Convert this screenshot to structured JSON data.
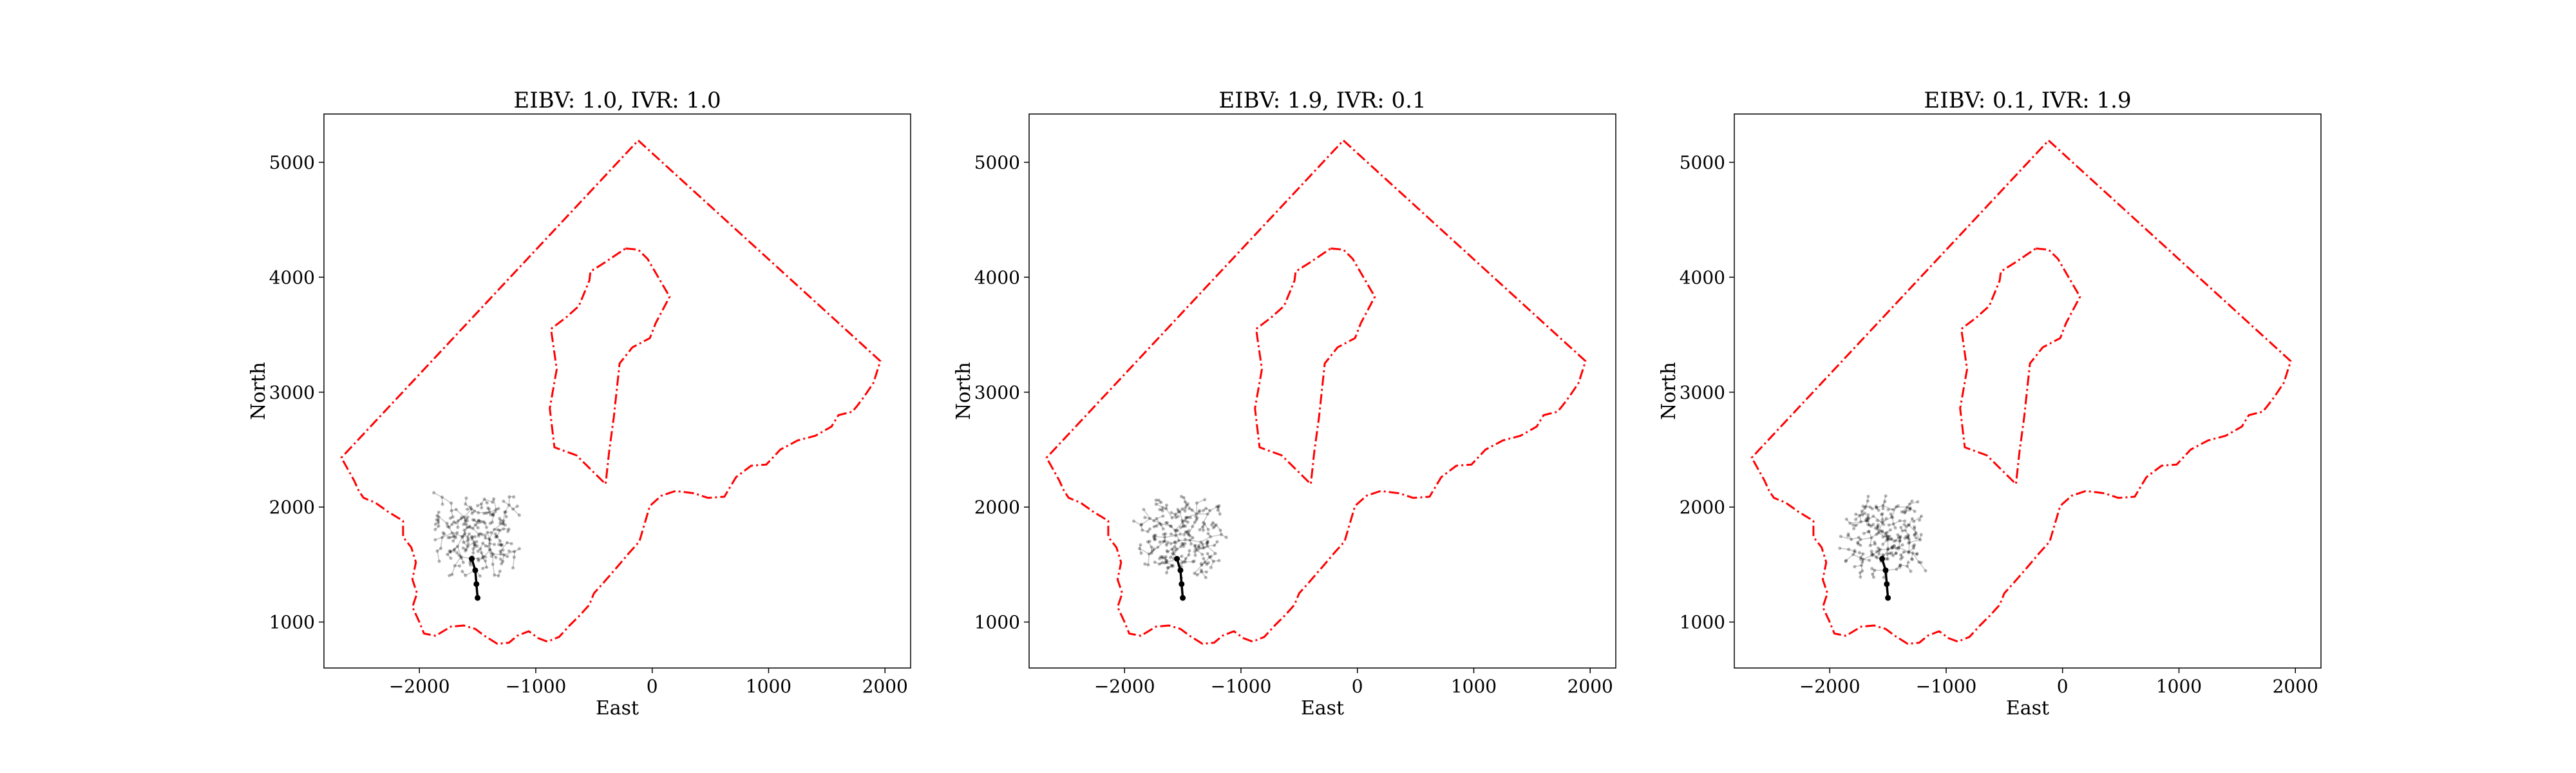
{
  "chart_data": [
    {
      "type": "scatter",
      "title": "EIBV: 1.0, IVR: 1.0",
      "xlabel": "East",
      "ylabel": "North",
      "xlim": [
        -2820,
        2220
      ],
      "ylim": [
        600,
        5420
      ],
      "xticks": [
        -2000,
        -1000,
        0,
        1000,
        2000
      ],
      "xtick_labels": [
        "−2000",
        "−1000",
        "0",
        "1000",
        "2000"
      ],
      "yticks": [
        1000,
        2000,
        3000,
        4000,
        5000
      ],
      "ytick_labels": [
        "1000",
        "2000",
        "3000",
        "4000",
        "5000"
      ],
      "tree_seed": 11,
      "grid": false
    },
    {
      "type": "scatter",
      "title": "EIBV: 1.9, IVR: 0.1",
      "xlabel": "East",
      "ylabel": "North",
      "xlim": [
        -2820,
        2220
      ],
      "ylim": [
        600,
        5420
      ],
      "xticks": [
        -2000,
        -1000,
        0,
        1000,
        2000
      ],
      "xtick_labels": [
        "−2000",
        "−1000",
        "0",
        "1000",
        "2000"
      ],
      "yticks": [
        1000,
        2000,
        3000,
        4000,
        5000
      ],
      "ytick_labels": [
        "1000",
        "2000",
        "3000",
        "4000",
        "5000"
      ],
      "tree_seed": 29,
      "grid": false
    },
    {
      "type": "scatter",
      "title": "EIBV: 0.1, IVR: 1.9",
      "xlabel": "East",
      "ylabel": "North",
      "xlim": [
        -2820,
        2220
      ],
      "ylim": [
        600,
        5420
      ],
      "xticks": [
        -2000,
        -1000,
        0,
        1000,
        2000
      ],
      "xtick_labels": [
        "−2000",
        "−1000",
        "0",
        "1000",
        "2000"
      ],
      "yticks": [
        1000,
        2000,
        3000,
        4000,
        5000
      ],
      "ytick_labels": [
        "1000",
        "2000",
        "3000",
        "4000",
        "5000"
      ],
      "tree_seed": 47,
      "grid": false
    }
  ],
  "shared": {
    "outer_boundary": [
      [
        -120,
        5190
      ],
      [
        1960,
        3270
      ],
      [
        1900,
        3080
      ],
      [
        1820,
        2960
      ],
      [
        1760,
        2880
      ],
      [
        1720,
        2830
      ],
      [
        1600,
        2800
      ],
      [
        1540,
        2700
      ],
      [
        1400,
        2620
      ],
      [
        1250,
        2580
      ],
      [
        1100,
        2500
      ],
      [
        980,
        2370
      ],
      [
        850,
        2360
      ],
      [
        720,
        2260
      ],
      [
        620,
        2090
      ],
      [
        480,
        2080
      ],
      [
        360,
        2120
      ],
      [
        200,
        2140
      ],
      [
        80,
        2100
      ],
      [
        -20,
        2010
      ],
      [
        -70,
        1840
      ],
      [
        -110,
        1700
      ],
      [
        -200,
        1600
      ],
      [
        -300,
        1480
      ],
      [
        -420,
        1340
      ],
      [
        -500,
        1250
      ],
      [
        -540,
        1150
      ],
      [
        -620,
        1060
      ],
      [
        -710,
        970
      ],
      [
        -800,
        870
      ],
      [
        -900,
        830
      ],
      [
        -980,
        860
      ],
      [
        -1060,
        920
      ],
      [
        -1160,
        880
      ],
      [
        -1230,
        820
      ],
      [
        -1330,
        810
      ],
      [
        -1440,
        880
      ],
      [
        -1520,
        940
      ],
      [
        -1620,
        970
      ],
      [
        -1730,
        960
      ],
      [
        -1860,
        880
      ],
      [
        -1960,
        900
      ],
      [
        -2000,
        1000
      ],
      [
        -2060,
        1130
      ],
      [
        -2020,
        1250
      ],
      [
        -2060,
        1370
      ],
      [
        -2030,
        1520
      ],
      [
        -2070,
        1650
      ],
      [
        -2140,
        1740
      ],
      [
        -2140,
        1880
      ],
      [
        -2270,
        1960
      ],
      [
        -2380,
        2040
      ],
      [
        -2480,
        2080
      ],
      [
        -2520,
        2140
      ],
      [
        -2560,
        2230
      ],
      [
        -2670,
        2430
      ],
      [
        -120,
        5190
      ]
    ],
    "inner_boundary": [
      [
        -230,
        4250
      ],
      [
        -120,
        4240
      ],
      [
        -40,
        4160
      ],
      [
        150,
        3830
      ],
      [
        30,
        3600
      ],
      [
        -20,
        3470
      ],
      [
        -170,
        3390
      ],
      [
        -280,
        3250
      ],
      [
        -330,
        2780
      ],
      [
        -370,
        2480
      ],
      [
        -400,
        2200
      ],
      [
        -650,
        2450
      ],
      [
        -840,
        2520
      ],
      [
        -880,
        2860
      ],
      [
        -820,
        3200
      ],
      [
        -870,
        3550
      ],
      [
        -740,
        3650
      ],
      [
        -630,
        3750
      ],
      [
        -540,
        3970
      ],
      [
        -530,
        4050
      ],
      [
        -420,
        4120
      ],
      [
        -230,
        4250
      ]
    ],
    "tree": {
      "origin": [
        -1500,
        1210
      ],
      "selected_path": [
        [
          -1500,
          1210
        ],
        [
          -1510,
          1330
        ],
        [
          -1520,
          1450
        ],
        [
          -1550,
          1550
        ]
      ]
    }
  }
}
